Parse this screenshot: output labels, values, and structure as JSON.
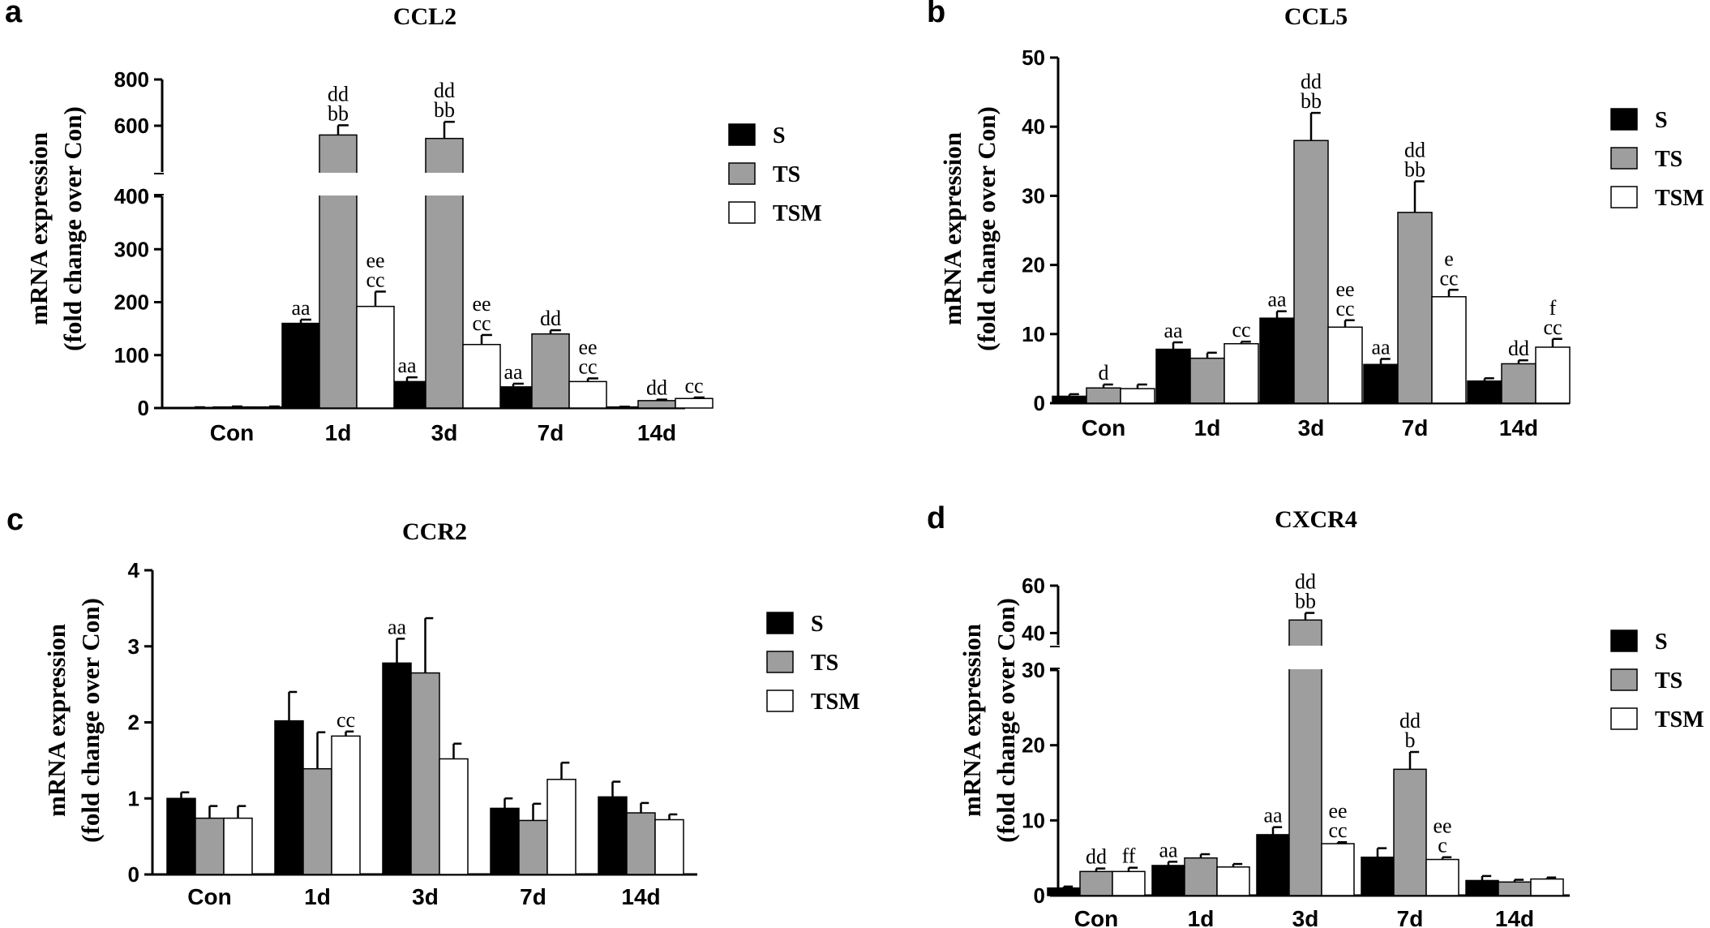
{
  "panel_labels": [
    "a",
    "b",
    "c",
    "d"
  ],
  "legend": {
    "series": [
      {
        "name": "S",
        "color": "#000000"
      },
      {
        "name": "TS",
        "color": "#9e9e9e"
      },
      {
        "name": "TSM",
        "color": "#ffffff"
      }
    ]
  },
  "chart_data": [
    {
      "type": "bar",
      "title": "CCL2",
      "ylabel_line1": "mRNA expression",
      "ylabel_line2": "(fold change over Con)",
      "categories": [
        "Con",
        "1d",
        "3d",
        "7d",
        "14d"
      ],
      "broken_axis": true,
      "lower_range": [
        0,
        400
      ],
      "lower_ticks": [
        "0",
        "100",
        "200",
        "300",
        "400"
      ],
      "upper_range": [
        400,
        800
      ],
      "upper_ticks": [
        "400",
        "600",
        "800"
      ],
      "series": [
        {
          "name": "S",
          "values": [
            1,
            160,
            50,
            40,
            2
          ],
          "errors": [
            0.5,
            7,
            8,
            6,
            0.5
          ]
        },
        {
          "name": "TS",
          "values": [
            2,
            560,
            545,
            140,
            14
          ],
          "errors": [
            1,
            42,
            72,
            7,
            2
          ]
        },
        {
          "name": "TSM",
          "values": [
            2,
            192,
            120,
            50,
            18
          ],
          "errors": [
            1,
            28,
            18,
            6,
            2
          ]
        }
      ],
      "annotations": [
        {
          "cat": 1,
          "series": 0,
          "lines": [
            "aa"
          ]
        },
        {
          "cat": 1,
          "series": 1,
          "lines": [
            "dd",
            "bb"
          ]
        },
        {
          "cat": 1,
          "series": 2,
          "lines": [
            "ee",
            "cc"
          ]
        },
        {
          "cat": 2,
          "series": 0,
          "lines": [
            "aa"
          ]
        },
        {
          "cat": 2,
          "series": 1,
          "lines": [
            "dd",
            "bb"
          ]
        },
        {
          "cat": 2,
          "series": 2,
          "lines": [
            "ee",
            "cc"
          ]
        },
        {
          "cat": 3,
          "series": 0,
          "lines": [
            "aa"
          ]
        },
        {
          "cat": 3,
          "series": 1,
          "lines": [
            "dd"
          ]
        },
        {
          "cat": 3,
          "series": 2,
          "lines": [
            "ee",
            "cc"
          ]
        },
        {
          "cat": 4,
          "series": 1,
          "lines": [
            "dd"
          ]
        },
        {
          "cat": 4,
          "series": 2,
          "lines": [
            "cc"
          ]
        }
      ]
    },
    {
      "type": "bar",
      "title": "CCL5",
      "ylabel_line1": "mRNA expression",
      "ylabel_line2": "(fold change over Con)",
      "categories": [
        "Con",
        "1d",
        "3d",
        "7d",
        "14d"
      ],
      "ylim": [
        0,
        50
      ],
      "yticks": [
        "0",
        "10",
        "20",
        "30",
        "40",
        "50"
      ],
      "series": [
        {
          "name": "S",
          "values": [
            1,
            7.8,
            12.3,
            5.6,
            3.2
          ],
          "errors": [
            0.3,
            1.0,
            1.0,
            0.8,
            0.4
          ]
        },
        {
          "name": "TS",
          "values": [
            2.2,
            6.5,
            38,
            27.6,
            5.7
          ],
          "errors": [
            0.5,
            0.8,
            4,
            4.5,
            0.5
          ]
        },
        {
          "name": "TSM",
          "values": [
            2.1,
            8.6,
            11,
            15.4,
            8.1
          ],
          "errors": [
            0.6,
            0.3,
            1.0,
            1.0,
            1.2
          ]
        }
      ],
      "annotations": [
        {
          "cat": 0,
          "series": 1,
          "lines": [
            "d"
          ]
        },
        {
          "cat": 1,
          "series": 0,
          "lines": [
            "aa"
          ]
        },
        {
          "cat": 1,
          "series": 2,
          "lines": [
            "cc"
          ]
        },
        {
          "cat": 2,
          "series": 0,
          "lines": [
            "aa"
          ]
        },
        {
          "cat": 2,
          "series": 1,
          "lines": [
            "dd",
            "bb"
          ]
        },
        {
          "cat": 2,
          "series": 2,
          "lines": [
            "ee",
            "cc"
          ]
        },
        {
          "cat": 3,
          "series": 0,
          "lines": [
            "aa"
          ]
        },
        {
          "cat": 3,
          "series": 1,
          "lines": [
            "dd",
            "bb"
          ]
        },
        {
          "cat": 3,
          "series": 2,
          "lines": [
            "e",
            "cc"
          ]
        },
        {
          "cat": 4,
          "series": 1,
          "lines": [
            "dd"
          ]
        },
        {
          "cat": 4,
          "series": 2,
          "lines": [
            "f",
            "cc"
          ]
        }
      ]
    },
    {
      "type": "bar",
      "title": "CCR2",
      "ylabel_line1": "mRNA expression",
      "ylabel_line2": "(fold change over Con)",
      "categories": [
        "Con",
        "1d",
        "3d",
        "7d",
        "14d"
      ],
      "ylim": [
        0,
        4
      ],
      "yticks": [
        "0",
        "1",
        "2",
        "3",
        "4"
      ],
      "series": [
        {
          "name": "S",
          "values": [
            1.0,
            2.02,
            2.78,
            0.87,
            1.02
          ],
          "errors": [
            0.08,
            0.38,
            0.32,
            0.13,
            0.2
          ]
        },
        {
          "name": "TS",
          "values": [
            0.74,
            1.39,
            2.65,
            0.71,
            0.81
          ],
          "errors": [
            0.16,
            0.48,
            0.72,
            0.22,
            0.13
          ]
        },
        {
          "name": "TSM",
          "values": [
            0.74,
            1.82,
            1.52,
            1.25,
            0.72
          ],
          "errors": [
            0.16,
            0.06,
            0.2,
            0.22,
            0.07
          ]
        }
      ],
      "annotations": [
        {
          "cat": 1,
          "series": 2,
          "lines": [
            "cc"
          ]
        },
        {
          "cat": 2,
          "series": 0,
          "lines": [
            "aa"
          ]
        }
      ]
    },
    {
      "type": "bar",
      "title": "CXCR4",
      "ylabel_line1": "mRNA expression",
      "ylabel_line2": "(fold change over Con)",
      "categories": [
        "Con",
        "1d",
        "3d",
        "7d",
        "14d"
      ],
      "broken_axis": true,
      "lower_range": [
        0,
        30
      ],
      "lower_ticks": [
        "0",
        "10",
        "20",
        "30"
      ],
      "upper_range": [
        35,
        60
      ],
      "upper_ticks": [
        "40",
        "60"
      ],
      "series": [
        {
          "name": "S",
          "values": [
            1,
            4,
            8.1,
            5.1,
            2
          ],
          "errors": [
            0.2,
            0.5,
            1.0,
            1.2,
            0.6
          ]
        },
        {
          "name": "TS",
          "values": [
            3.2,
            5,
            45.5,
            16.8,
            1.8
          ],
          "errors": [
            0.4,
            0.5,
            3,
            2.3,
            0.3
          ]
        },
        {
          "name": "TSM",
          "values": [
            3.2,
            3.8,
            6.9,
            4.8,
            2.2
          ],
          "errors": [
            0.5,
            0.4,
            0.2,
            0.3,
            0.2
          ]
        }
      ],
      "annotations": [
        {
          "cat": 0,
          "series": 1,
          "lines": [
            "dd"
          ]
        },
        {
          "cat": 0,
          "series": 2,
          "lines": [
            "ff"
          ]
        },
        {
          "cat": 1,
          "series": 0,
          "lines": [
            "aa"
          ]
        },
        {
          "cat": 2,
          "series": 0,
          "lines": [
            "aa"
          ]
        },
        {
          "cat": 2,
          "series": 1,
          "lines": [
            "dd",
            "bb"
          ]
        },
        {
          "cat": 2,
          "series": 2,
          "lines": [
            "ee",
            "cc"
          ]
        },
        {
          "cat": 3,
          "series": 1,
          "lines": [
            "dd",
            "b"
          ]
        },
        {
          "cat": 3,
          "series": 2,
          "lines": [
            "ee",
            "c"
          ]
        }
      ]
    }
  ]
}
